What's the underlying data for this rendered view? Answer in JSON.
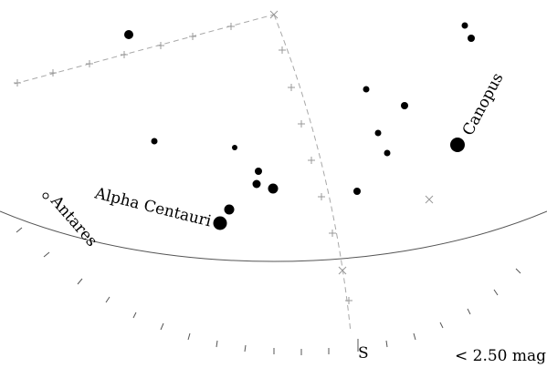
{
  "map": {
    "horizon_label": "S",
    "magnitude_note": "< 2.50 mag",
    "named_stars": [
      {
        "name": "Canopus",
        "icon": "bright-star-icon"
      },
      {
        "name": "Alpha Centauri",
        "icon": "bright-star-icon"
      },
      {
        "name": "Antares",
        "icon": "open-star-icon"
      }
    ],
    "colors": {
      "stars": "#000000",
      "grid": "#9a9a9a",
      "horizon": "#555555",
      "background": "#ffffff"
    }
  }
}
